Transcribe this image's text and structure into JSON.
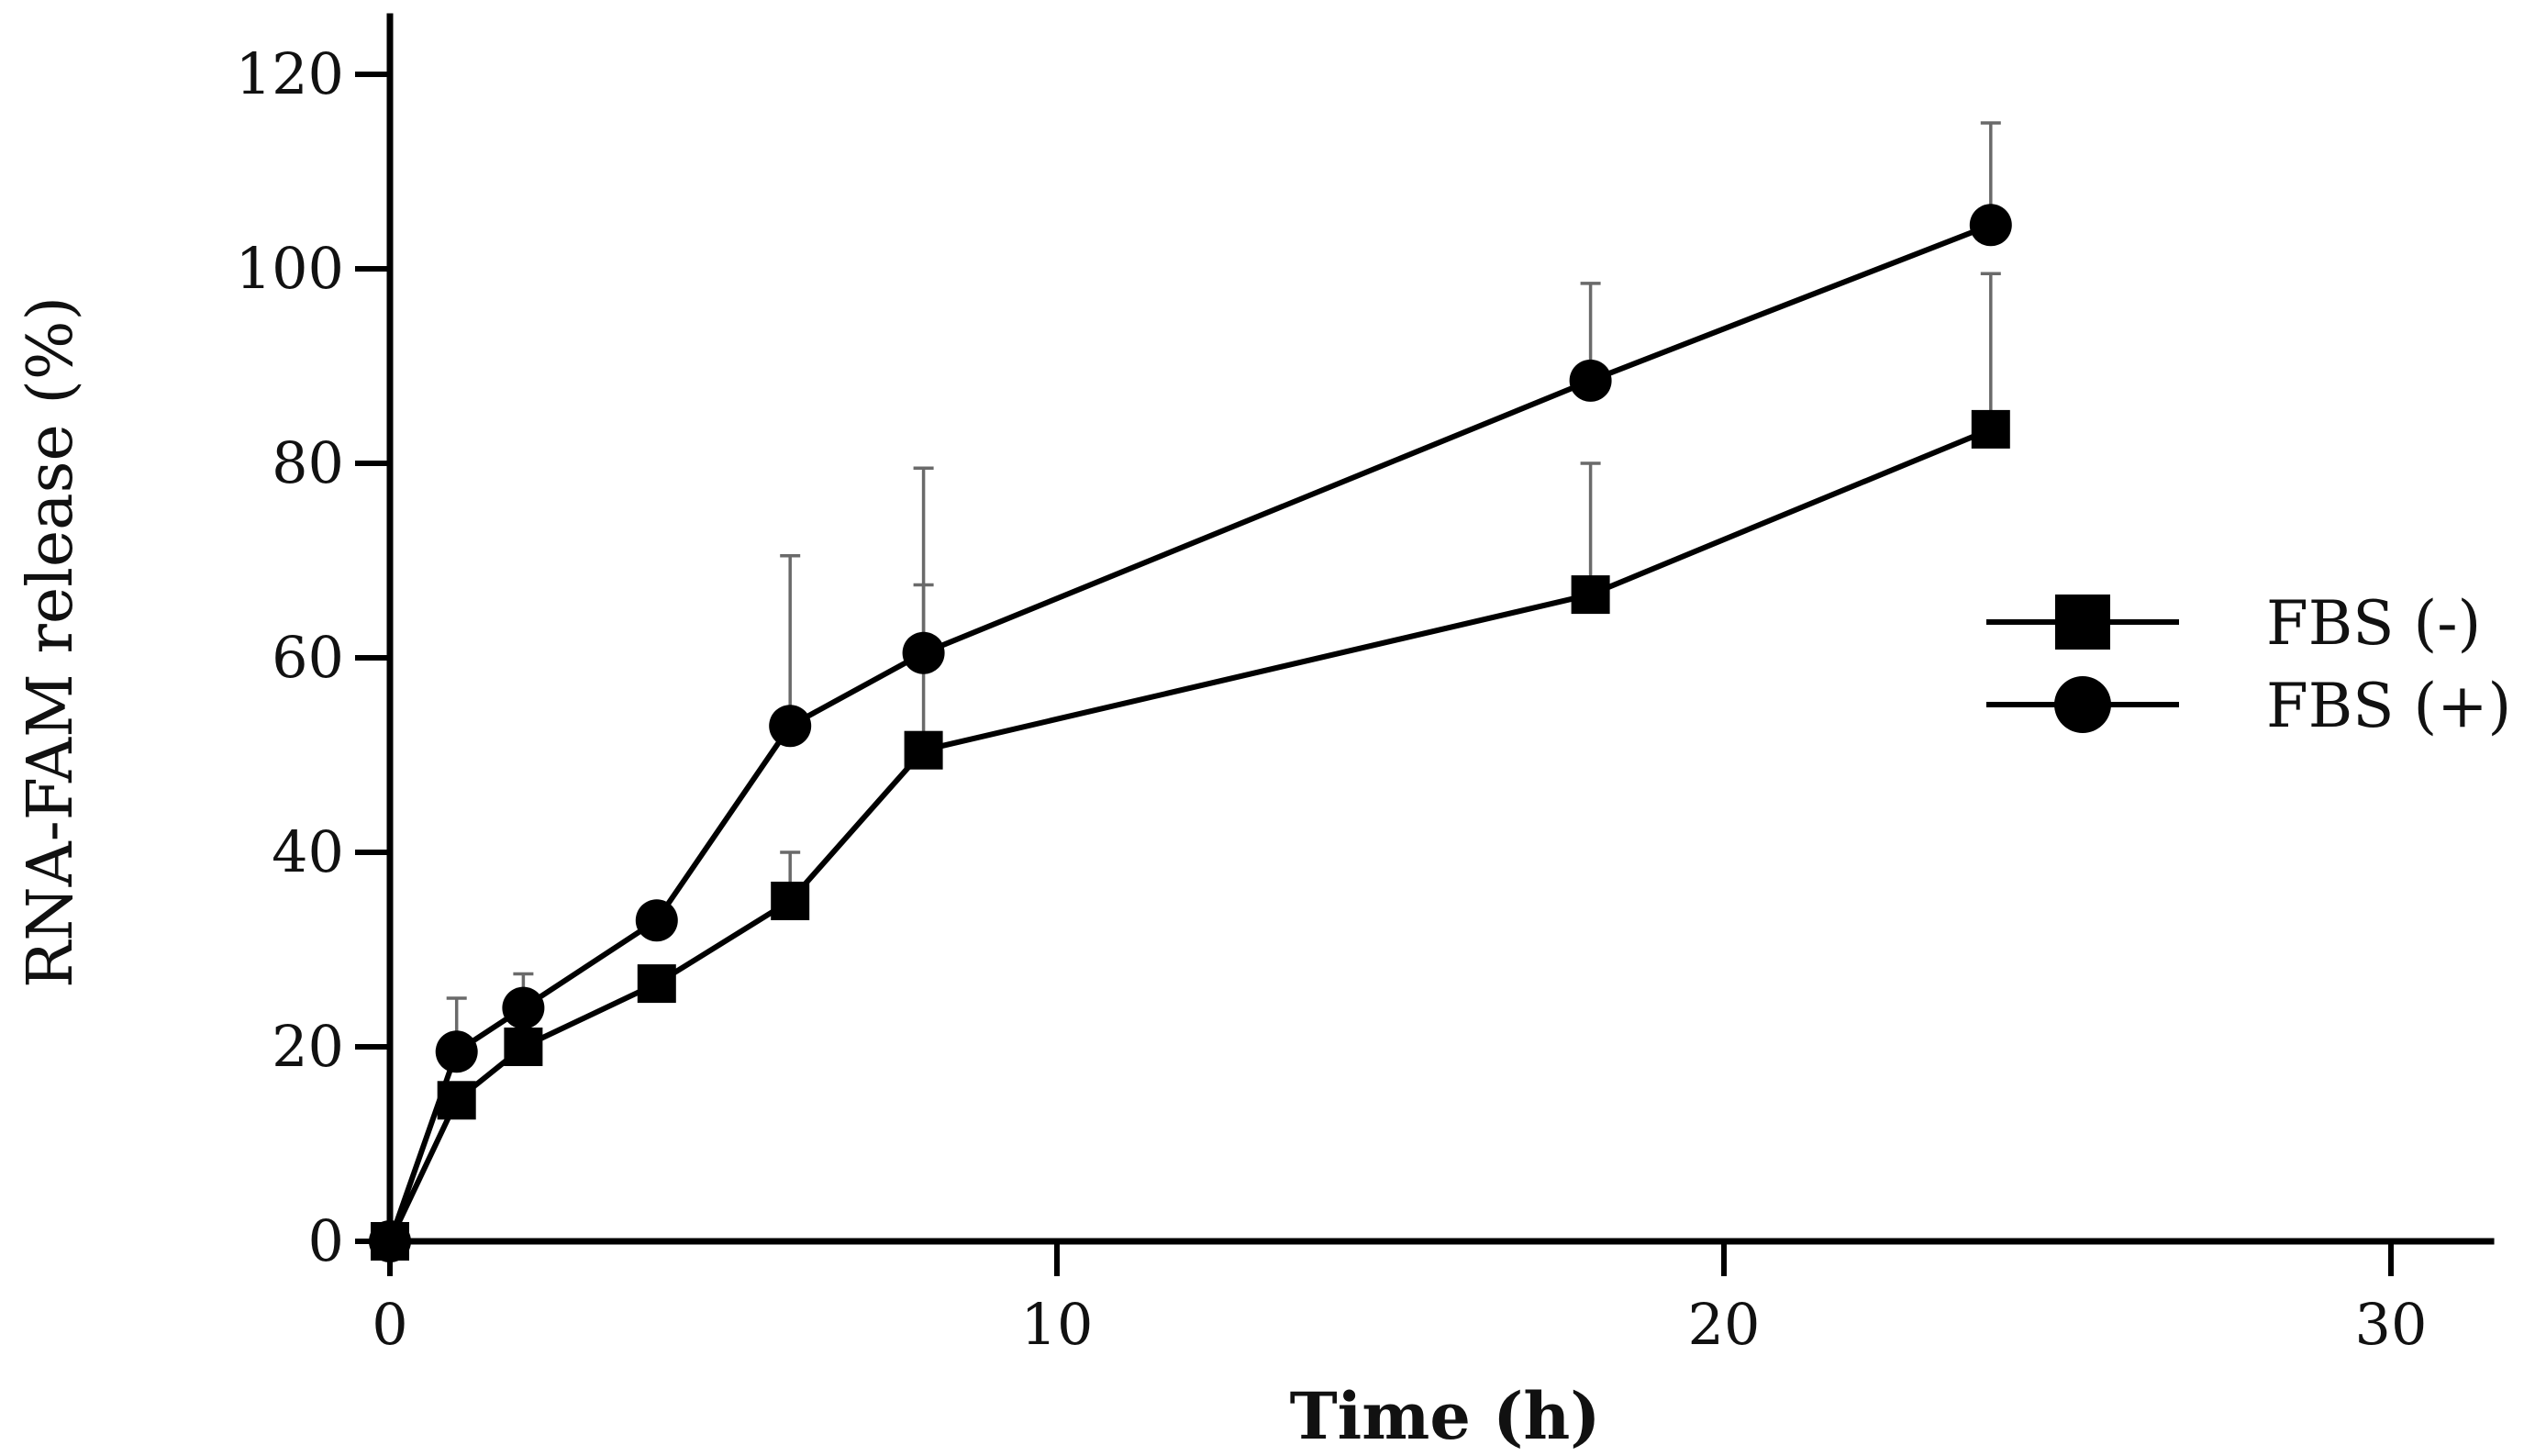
{
  "chart_data": {
    "type": "line",
    "title": "",
    "xlabel": "Time (h)",
    "ylabel": "RNA-FAM release (%)",
    "xlim": [
      0,
      31.5
    ],
    "ylim": [
      0,
      120
    ],
    "xticks": [
      0,
      10,
      20,
      30
    ],
    "yticks": [
      0,
      20,
      40,
      60,
      80,
      100,
      120
    ],
    "xtick_labels": [
      "0",
      "10",
      "20",
      "30"
    ],
    "ytick_labels": [
      "0",
      "20",
      "40",
      "60",
      "80",
      "100",
      "120"
    ],
    "grid": false,
    "legend_position": "right",
    "series": [
      {
        "name": "FBS (-)",
        "marker": "square",
        "color": "#000000",
        "x": [
          0,
          1,
          2,
          4,
          6,
          8,
          18,
          24
        ],
        "y": [
          0,
          14.5,
          20,
          26.5,
          35,
          50.5,
          66.5,
          83.5
        ],
        "error": [
          0,
          0,
          0,
          0,
          5,
          17,
          13.5,
          16
        ]
      },
      {
        "name": "FBS (+)",
        "marker": "circle",
        "color": "#000000",
        "x": [
          0,
          1,
          2,
          4,
          6,
          8,
          18,
          24
        ],
        "y": [
          0,
          19.5,
          24,
          33,
          53,
          60.5,
          88.5,
          104.5
        ],
        "error": [
          0,
          5.5,
          3.5,
          0,
          17.5,
          19,
          10,
          10.5
        ]
      }
    ]
  }
}
